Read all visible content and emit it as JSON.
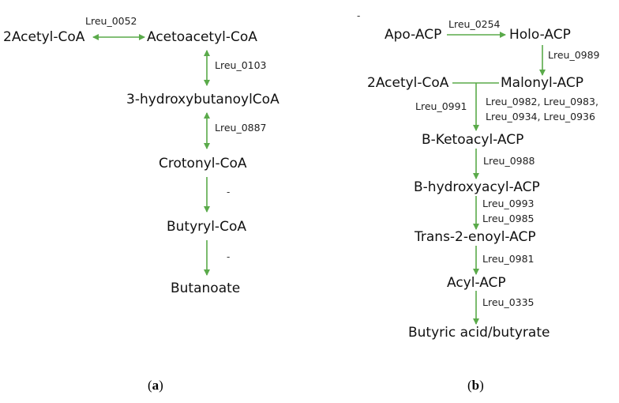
{
  "panel_a": {
    "label_open": "(",
    "label_letter": "a",
    "label_close": ")",
    "nodes": {
      "acetyl_coa": "2Acetyl-CoA",
      "acetoacetyl_coa": "Acetoacetyl-CoA",
      "hydroxybutanoyl_coa": "3-hydroxybutanoylCoA",
      "crotonyl_coa": "Crotonyl-CoA",
      "butyryl_coa": "Butyryl-CoA",
      "butanoate": "Butanoate"
    },
    "genes": {
      "g0052": "Lreu_0052",
      "g0103": "Lreu_0103",
      "g0887": "Lreu_0887"
    },
    "blank_markers": [
      "-",
      "-"
    ]
  },
  "panel_b": {
    "label_open": "(",
    "label_letter": "b",
    "label_close": ")",
    "nodes": {
      "apo_acp": "Apo-ACP",
      "holo_acp": "Holo-ACP",
      "acetyl_coa": "2Acetyl-CoA",
      "malonyl_acp": "Malonyl-ACP",
      "b_ketoacyl_acp": "B-Ketoacyl-ACP",
      "b_hydroxyacyl_acp": "B-hydroxyacyl-ACP",
      "trans_enoyl_acp": "Trans-2-enoyl-ACP",
      "acyl_acp": "Acyl-ACP",
      "butyric_acid": "Butyric acid/butyrate"
    },
    "genes": {
      "g0254": "Lreu_0254",
      "g0989": "Lreu_0989",
      "g0991": "Lreu_0991",
      "g0982_line1": "Lreu_0982, Lreu_0983,",
      "g0982_line2": "Lreu_0934, Lreu_0936",
      "g0988": "Lreu_0988",
      "g0993": "Lreu_0993",
      "g0985": "Lreu_0985",
      "g0981": "Lreu_0981",
      "g0335": "Lreu_0335"
    },
    "stray_mark": "-"
  },
  "colors": {
    "arrow": "#5aaa4a",
    "text": "#111111"
  }
}
